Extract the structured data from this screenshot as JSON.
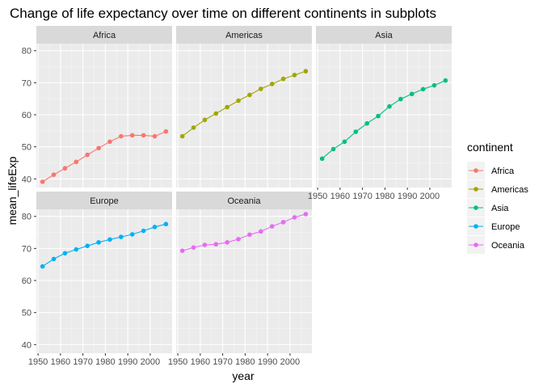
{
  "chart_data": {
    "type": "line",
    "title": "Change of life expectancy over time on different continents in subplots",
    "xlabel": "year",
    "ylabel": "mean_lifeExp",
    "xlim": [
      1949.25,
      2009.75
    ],
    "ylim": [
      37.3,
      82.2
    ],
    "x_ticks": [
      1950,
      1960,
      1970,
      1980,
      1990,
      2000
    ],
    "y_ticks": [
      40,
      50,
      60,
      70,
      80
    ],
    "grid": true,
    "legend": {
      "title": "continent",
      "position": "right"
    },
    "x": [
      1952,
      1957,
      1962,
      1967,
      1972,
      1977,
      1982,
      1987,
      1992,
      1997,
      2002,
      2007
    ],
    "series": [
      {
        "name": "Africa",
        "color": "#F8766D",
        "values": [
          39.1,
          41.3,
          43.3,
          45.3,
          47.5,
          49.6,
          51.6,
          53.3,
          53.6,
          53.6,
          53.3,
          54.8
        ]
      },
      {
        "name": "Americas",
        "color": "#A3A500",
        "values": [
          53.3,
          56.0,
          58.4,
          60.4,
          62.4,
          64.4,
          66.2,
          68.1,
          69.6,
          71.2,
          72.4,
          73.6
        ]
      },
      {
        "name": "Asia",
        "color": "#00BF7D",
        "values": [
          46.3,
          49.3,
          51.6,
          54.7,
          57.3,
          59.6,
          62.6,
          64.9,
          66.5,
          68.0,
          69.2,
          70.7
        ]
      },
      {
        "name": "Europe",
        "color": "#00B0F6",
        "values": [
          64.4,
          66.7,
          68.5,
          69.7,
          70.8,
          71.9,
          72.8,
          73.6,
          74.4,
          75.5,
          76.7,
          77.6
        ]
      },
      {
        "name": "Oceania",
        "color": "#E76BF3",
        "values": [
          69.3,
          70.3,
          71.1,
          71.3,
          71.9,
          72.9,
          74.3,
          75.3,
          76.9,
          78.2,
          79.7,
          80.7
        ]
      }
    ]
  }
}
